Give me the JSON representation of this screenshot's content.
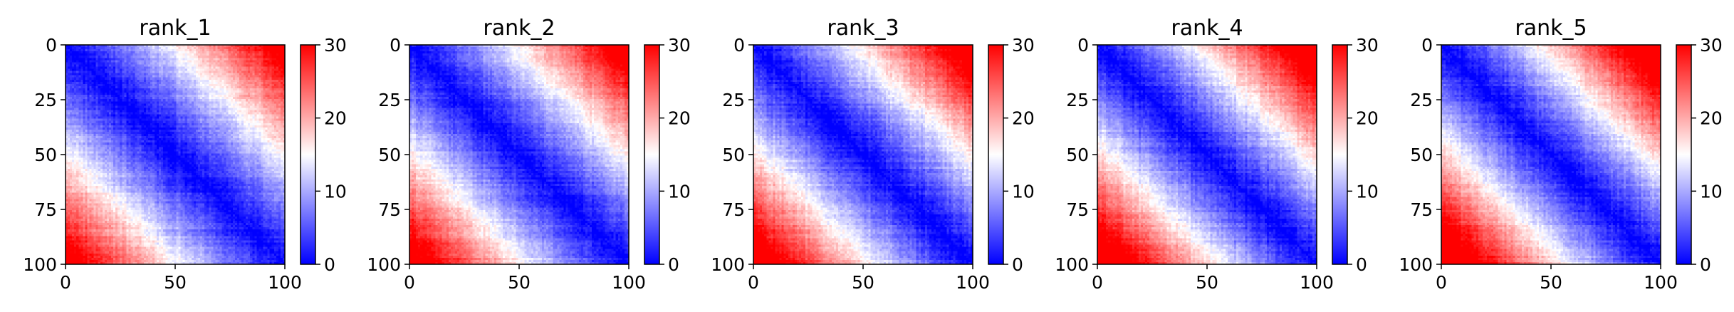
{
  "chart_data": [
    {
      "type": "heatmap",
      "title": "rank_1",
      "matrix_size": 101,
      "xticks": [
        0,
        50,
        100
      ],
      "yticks": [
        0,
        25,
        50,
        75,
        100
      ],
      "colorbar": {
        "min": 0,
        "max": 30,
        "ticks": [
          0,
          10,
          20,
          30
        ],
        "colors": [
          "#0000ff",
          "#ffffff",
          "#ff0000"
        ]
      },
      "xlim": [
        0,
        100
      ],
      "ylim": [
        100,
        0
      ]
    },
    {
      "type": "heatmap",
      "title": "rank_2",
      "matrix_size": 101,
      "xticks": [
        0,
        50,
        100
      ],
      "yticks": [
        0,
        25,
        50,
        75,
        100
      ],
      "colorbar": {
        "min": 0,
        "max": 30,
        "ticks": [
          0,
          10,
          20,
          30
        ],
        "colors": [
          "#0000ff",
          "#ffffff",
          "#ff0000"
        ]
      },
      "xlim": [
        0,
        100
      ],
      "ylim": [
        100,
        0
      ]
    },
    {
      "type": "heatmap",
      "title": "rank_3",
      "matrix_size": 101,
      "xticks": [
        0,
        50,
        100
      ],
      "yticks": [
        0,
        25,
        50,
        75,
        100
      ],
      "colorbar": {
        "min": 0,
        "max": 30,
        "ticks": [
          0,
          10,
          20,
          30
        ],
        "colors": [
          "#0000ff",
          "#ffffff",
          "#ff0000"
        ]
      },
      "xlim": [
        0,
        100
      ],
      "ylim": [
        100,
        0
      ]
    },
    {
      "type": "heatmap",
      "title": "rank_4",
      "matrix_size": 101,
      "xticks": [
        0,
        50,
        100
      ],
      "yticks": [
        0,
        25,
        50,
        75,
        100
      ],
      "colorbar": {
        "min": 0,
        "max": 30,
        "ticks": [
          0,
          10,
          20,
          30
        ],
        "colors": [
          "#0000ff",
          "#ffffff",
          "#ff0000"
        ]
      },
      "xlim": [
        0,
        100
      ],
      "ylim": [
        100,
        0
      ]
    },
    {
      "type": "heatmap",
      "title": "rank_5",
      "matrix_size": 101,
      "xticks": [
        0,
        50,
        100
      ],
      "yticks": [
        0,
        25,
        50,
        75,
        100
      ],
      "colorbar": {
        "min": 0,
        "max": 30,
        "ticks": [
          0,
          10,
          20,
          30
        ],
        "colors": [
          "#0000ff",
          "#ffffff",
          "#ff0000"
        ]
      },
      "xlim": [
        0,
        100
      ],
      "ylim": [
        100,
        0
      ]
    }
  ]
}
